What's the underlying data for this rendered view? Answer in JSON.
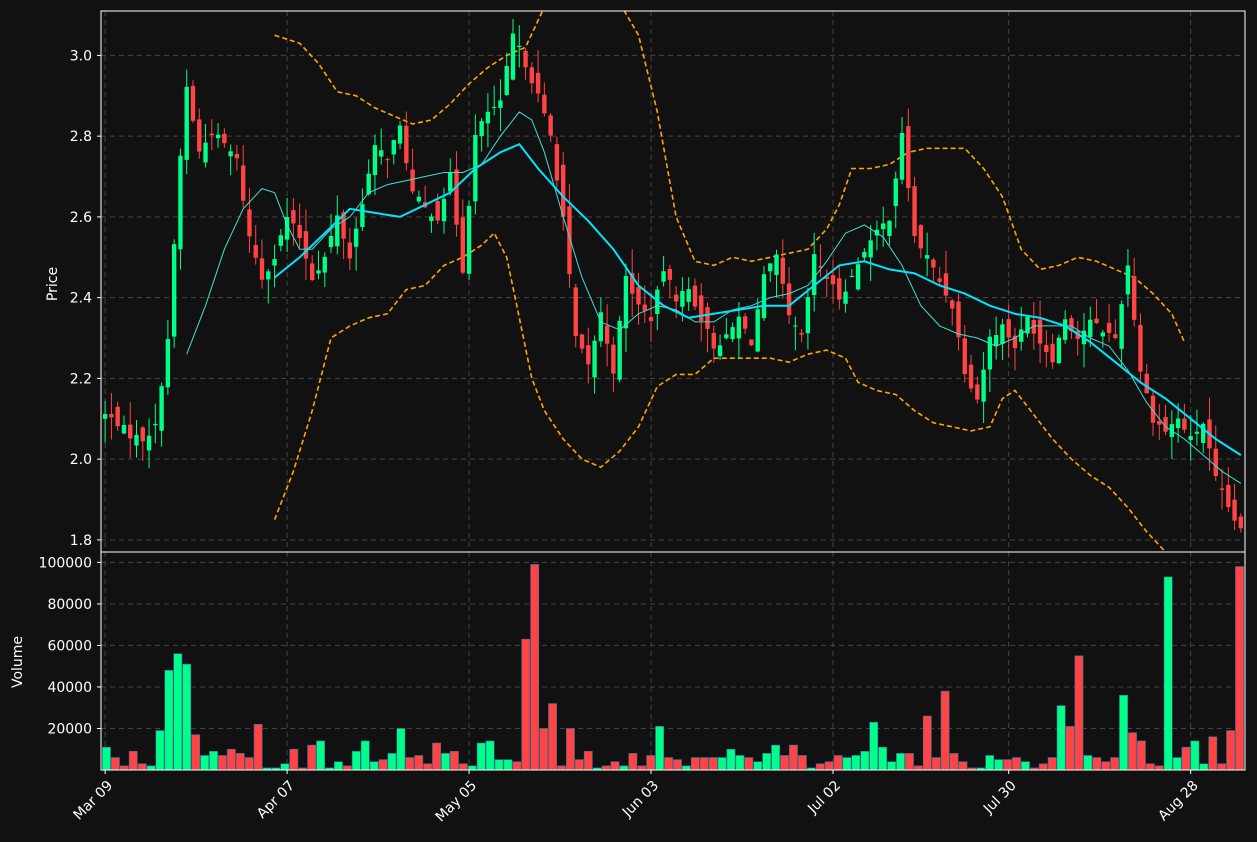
{
  "chart_data": {
    "type": "candlestick",
    "price_panel": {
      "ylabel": "Price",
      "ylim": [
        1.77,
        3.11
      ],
      "yticks": [
        1.8,
        2.0,
        2.2,
        2.4,
        2.6,
        2.8,
        3.0
      ],
      "ytick_labels": [
        "1.8",
        "2.0",
        "2.2",
        "2.4",
        "2.6",
        "2.8",
        "3.0"
      ]
    },
    "volume_panel": {
      "ylabel": "Volume",
      "ylim": [
        0,
        105000
      ],
      "yticks": [
        20000,
        40000,
        60000,
        80000,
        100000
      ],
      "ytick_labels": [
        "20000",
        "40000",
        "60000",
        "80000",
        "100000"
      ]
    },
    "x_tick_labels": [
      "Mar 09",
      "Apr 07",
      "May 05",
      "Jun 03",
      "Jul 02",
      "Jul 30",
      "Aug 28"
    ],
    "x_tick_index": [
      0,
      29,
      58,
      87,
      116,
      144,
      173
    ],
    "n_bars": 182,
    "grid": true,
    "colors": {
      "background": "#111111",
      "up": "#00ff88",
      "down": "#ff4444",
      "ma_fast": "#40e0d0",
      "ma_slow": "#00e5ff",
      "bands": "#ffa500",
      "grid": "#444444",
      "axes": "#ffffff"
    },
    "close_points": [
      [
        0,
        2.11
      ],
      [
        2,
        2.09
      ],
      [
        4,
        2.06
      ],
      [
        6,
        2.05
      ],
      [
        8,
        2.08
      ],
      [
        10,
        2.3
      ],
      [
        12,
        2.75
      ],
      [
        13,
        2.92
      ],
      [
        15,
        2.76
      ],
      [
        17,
        2.81
      ],
      [
        19,
        2.78
      ],
      [
        21,
        2.74
      ],
      [
        23,
        2.55
      ],
      [
        25,
        2.45
      ],
      [
        27,
        2.5
      ],
      [
        29,
        2.6
      ],
      [
        31,
        2.55
      ],
      [
        33,
        2.45
      ],
      [
        35,
        2.5
      ],
      [
        37,
        2.6
      ],
      [
        39,
        2.5
      ],
      [
        41,
        2.64
      ],
      [
        43,
        2.77
      ],
      [
        45,
        2.75
      ],
      [
        47,
        2.82
      ],
      [
        49,
        2.66
      ],
      [
        51,
        2.62
      ],
      [
        53,
        2.6
      ],
      [
        55,
        2.7
      ],
      [
        57,
        2.47
      ],
      [
        59,
        2.8
      ],
      [
        61,
        2.86
      ],
      [
        63,
        2.88
      ],
      [
        65,
        3.05
      ],
      [
        67,
        2.98
      ],
      [
        69,
        2.9
      ],
      [
        71,
        2.8
      ],
      [
        73,
        2.6
      ],
      [
        75,
        2.3
      ],
      [
        77,
        2.23
      ],
      [
        79,
        2.36
      ],
      [
        81,
        2.22
      ],
      [
        83,
        2.45
      ],
      [
        85,
        2.38
      ],
      [
        87,
        2.35
      ],
      [
        89,
        2.47
      ],
      [
        91,
        2.4
      ],
      [
        93,
        2.42
      ],
      [
        95,
        2.35
      ],
      [
        97,
        2.28
      ],
      [
        99,
        2.3
      ],
      [
        101,
        2.35
      ],
      [
        103,
        2.29
      ],
      [
        105,
        2.45
      ],
      [
        107,
        2.5
      ],
      [
        109,
        2.35
      ],
      [
        111,
        2.3
      ],
      [
        113,
        2.5
      ],
      [
        115,
        2.45
      ],
      [
        117,
        2.4
      ],
      [
        119,
        2.45
      ],
      [
        121,
        2.52
      ],
      [
        123,
        2.56
      ],
      [
        125,
        2.6
      ],
      [
        127,
        2.8
      ],
      [
        129,
        2.55
      ],
      [
        131,
        2.5
      ],
      [
        133,
        2.44
      ],
      [
        135,
        2.38
      ],
      [
        137,
        2.22
      ],
      [
        139,
        2.15
      ],
      [
        141,
        2.3
      ],
      [
        143,
        2.33
      ],
      [
        145,
        2.28
      ],
      [
        147,
        2.35
      ],
      [
        149,
        2.29
      ],
      [
        151,
        2.25
      ],
      [
        153,
        2.35
      ],
      [
        155,
        2.3
      ],
      [
        157,
        2.34
      ],
      [
        159,
        2.32
      ],
      [
        161,
        2.3
      ],
      [
        163,
        2.48
      ],
      [
        165,
        2.22
      ],
      [
        167,
        2.1
      ],
      [
        169,
        2.07
      ],
      [
        171,
        2.1
      ],
      [
        173,
        2.05
      ],
      [
        175,
        2.09
      ],
      [
        177,
        1.95
      ],
      [
        179,
        1.88
      ],
      [
        181,
        1.82
      ]
    ],
    "volume_points": [
      [
        0,
        11000
      ],
      [
        1,
        6000
      ],
      [
        2,
        2000
      ],
      [
        3,
        9000
      ],
      [
        4,
        3000
      ],
      [
        5,
        2000
      ],
      [
        6,
        19000
      ],
      [
        7,
        48000
      ],
      [
        8,
        56000
      ],
      [
        9,
        51000
      ],
      [
        10,
        17000
      ],
      [
        11,
        7000
      ],
      [
        12,
        9000
      ],
      [
        13,
        7000
      ],
      [
        14,
        10000
      ],
      [
        15,
        8000
      ],
      [
        16,
        6000
      ],
      [
        17,
        22000
      ],
      [
        18,
        1000
      ],
      [
        19,
        1000
      ],
      [
        20,
        3000
      ],
      [
        21,
        10000
      ],
      [
        22,
        1000
      ],
      [
        23,
        12000
      ],
      [
        24,
        14000
      ],
      [
        25,
        1000
      ],
      [
        26,
        4000
      ],
      [
        27,
        2000
      ],
      [
        28,
        9000
      ],
      [
        29,
        14000
      ],
      [
        30,
        4000
      ],
      [
        31,
        5000
      ],
      [
        32,
        8000
      ],
      [
        33,
        20000
      ],
      [
        34,
        6000
      ],
      [
        35,
        7000
      ],
      [
        36,
        3000
      ],
      [
        37,
        13000
      ],
      [
        38,
        8000
      ],
      [
        39,
        9000
      ],
      [
        40,
        3000
      ],
      [
        41,
        2000
      ],
      [
        42,
        13000
      ],
      [
        43,
        14000
      ],
      [
        44,
        5000
      ],
      [
        45,
        5000
      ],
      [
        46,
        4000
      ],
      [
        47,
        63000
      ],
      [
        48,
        99000
      ],
      [
        49,
        20000
      ],
      [
        50,
        32000
      ],
      [
        51,
        2000
      ],
      [
        52,
        20000
      ],
      [
        53,
        5000
      ],
      [
        54,
        9000
      ],
      [
        55,
        1000
      ],
      [
        56,
        2000
      ],
      [
        57,
        4000
      ],
      [
        58,
        2000
      ],
      [
        59,
        8000
      ],
      [
        60,
        2000
      ],
      [
        61,
        7000
      ],
      [
        62,
        21000
      ],
      [
        63,
        6000
      ],
      [
        64,
        5000
      ],
      [
        65,
        2000
      ],
      [
        66,
        6000
      ],
      [
        67,
        6000
      ],
      [
        68,
        6000
      ],
      [
        69,
        6000
      ],
      [
        70,
        10000
      ],
      [
        71,
        7000
      ],
      [
        72,
        6000
      ],
      [
        73,
        4000
      ],
      [
        74,
        8000
      ],
      [
        75,
        12000
      ],
      [
        76,
        7000
      ],
      [
        77,
        12000
      ],
      [
        78,
        7000
      ],
      [
        79,
        1000
      ],
      [
        80,
        3000
      ],
      [
        81,
        4000
      ],
      [
        82,
        7000
      ],
      [
        83,
        6000
      ],
      [
        84,
        7000
      ],
      [
        85,
        9000
      ],
      [
        86,
        23000
      ],
      [
        87,
        11000
      ],
      [
        88,
        4000
      ],
      [
        89,
        8000
      ],
      [
        90,
        8000
      ],
      [
        91,
        2000
      ],
      [
        92,
        26000
      ],
      [
        93,
        6000
      ],
      [
        94,
        38000
      ],
      [
        95,
        8000
      ],
      [
        96,
        4000
      ],
      [
        97,
        1000
      ],
      [
        98,
        1000
      ],
      [
        99,
        7000
      ],
      [
        100,
        5000
      ],
      [
        101,
        5000
      ],
      [
        102,
        6000
      ],
      [
        103,
        4000
      ],
      [
        104,
        1000
      ],
      [
        105,
        3000
      ],
      [
        106,
        6000
      ],
      [
        107,
        31000
      ],
      [
        108,
        21000
      ],
      [
        109,
        55000
      ],
      [
        110,
        7000
      ],
      [
        111,
        6000
      ],
      [
        112,
        4000
      ],
      [
        113,
        6000
      ],
      [
        114,
        36000
      ],
      [
        115,
        18000
      ],
      [
        116,
        14000
      ],
      [
        117,
        3000
      ],
      [
        118,
        2000
      ],
      [
        119,
        93000
      ],
      [
        120,
        6000
      ],
      [
        121,
        11000
      ],
      [
        122,
        14000
      ],
      [
        123,
        3000
      ],
      [
        124,
        16000
      ],
      [
        125,
        3000
      ],
      [
        126,
        19000
      ],
      [
        127,
        98000
      ]
    ],
    "ma_fast_points": [
      [
        13,
        2.26
      ],
      [
        16,
        2.38
      ],
      [
        19,
        2.52
      ],
      [
        22,
        2.62
      ],
      [
        25,
        2.67
      ],
      [
        27,
        2.66
      ],
      [
        29,
        2.58
      ],
      [
        31,
        2.52
      ],
      [
        33,
        2.52
      ],
      [
        36,
        2.57
      ],
      [
        39,
        2.6
      ],
      [
        42,
        2.66
      ],
      [
        45,
        2.68
      ],
      [
        48,
        2.69
      ],
      [
        51,
        2.7
      ],
      [
        54,
        2.71
      ],
      [
        57,
        2.71
      ],
      [
        60,
        2.73
      ],
      [
        63,
        2.8
      ],
      [
        66,
        2.86
      ],
      [
        68,
        2.84
      ],
      [
        70,
        2.76
      ],
      [
        73,
        2.6
      ],
      [
        76,
        2.45
      ],
      [
        79,
        2.34
      ],
      [
        82,
        2.32
      ],
      [
        85,
        2.36
      ],
      [
        88,
        2.38
      ],
      [
        91,
        2.37
      ],
      [
        94,
        2.34
      ],
      [
        97,
        2.34
      ],
      [
        100,
        2.37
      ],
      [
        103,
        2.38
      ],
      [
        106,
        2.4
      ],
      [
        109,
        2.41
      ],
      [
        112,
        2.43
      ],
      [
        115,
        2.49
      ],
      [
        118,
        2.56
      ],
      [
        121,
        2.58
      ],
      [
        124,
        2.55
      ],
      [
        127,
        2.48
      ],
      [
        130,
        2.38
      ],
      [
        133,
        2.33
      ],
      [
        136,
        2.31
      ],
      [
        139,
        2.3
      ],
      [
        142,
        2.28
      ],
      [
        145,
        2.3
      ],
      [
        148,
        2.33
      ],
      [
        151,
        2.33
      ],
      [
        154,
        2.33
      ],
      [
        157,
        2.3
      ],
      [
        160,
        2.28
      ],
      [
        163,
        2.22
      ],
      [
        166,
        2.14
      ],
      [
        169,
        2.08
      ],
      [
        172,
        2.05
      ],
      [
        175,
        2.01
      ],
      [
        178,
        1.97
      ],
      [
        181,
        1.94
      ]
    ],
    "ma_slow_points": [
      [
        27,
        2.45
      ],
      [
        31,
        2.5
      ],
      [
        35,
        2.56
      ],
      [
        39,
        2.62
      ],
      [
        43,
        2.61
      ],
      [
        47,
        2.6
      ],
      [
        51,
        2.63
      ],
      [
        55,
        2.66
      ],
      [
        59,
        2.72
      ],
      [
        63,
        2.76
      ],
      [
        66,
        2.78
      ],
      [
        69,
        2.72
      ],
      [
        73,
        2.65
      ],
      [
        77,
        2.59
      ],
      [
        81,
        2.52
      ],
      [
        85,
        2.43
      ],
      [
        89,
        2.38
      ],
      [
        93,
        2.35
      ],
      [
        97,
        2.36
      ],
      [
        101,
        2.37
      ],
      [
        105,
        2.38
      ],
      [
        109,
        2.38
      ],
      [
        113,
        2.43
      ],
      [
        117,
        2.48
      ],
      [
        121,
        2.49
      ],
      [
        125,
        2.47
      ],
      [
        129,
        2.46
      ],
      [
        133,
        2.43
      ],
      [
        137,
        2.41
      ],
      [
        141,
        2.38
      ],
      [
        145,
        2.36
      ],
      [
        149,
        2.35
      ],
      [
        153,
        2.33
      ],
      [
        157,
        2.29
      ],
      [
        161,
        2.24
      ],
      [
        165,
        2.19
      ],
      [
        169,
        2.15
      ],
      [
        173,
        2.1
      ],
      [
        177,
        2.05
      ],
      [
        181,
        2.01
      ]
    ],
    "upper_band_points": [
      [
        27,
        3.05
      ],
      [
        31,
        3.03
      ],
      [
        34,
        2.98
      ],
      [
        37,
        2.91
      ],
      [
        40,
        2.9
      ],
      [
        43,
        2.87
      ],
      [
        46,
        2.85
      ],
      [
        49,
        2.83
      ],
      [
        52,
        2.84
      ],
      [
        55,
        2.88
      ],
      [
        58,
        2.93
      ],
      [
        61,
        2.97
      ],
      [
        64,
        3.0
      ],
      [
        67,
        3.02
      ],
      [
        70,
        3.12
      ],
      [
        73,
        3.19
      ],
      [
        76,
        3.2
      ],
      [
        79,
        3.18
      ],
      [
        82,
        3.13
      ],
      [
        85,
        3.05
      ],
      [
        88,
        2.86
      ],
      [
        91,
        2.6
      ],
      [
        94,
        2.49
      ],
      [
        97,
        2.48
      ],
      [
        100,
        2.5
      ],
      [
        103,
        2.49
      ],
      [
        106,
        2.5
      ],
      [
        109,
        2.51
      ],
      [
        112,
        2.52
      ],
      [
        115,
        2.57
      ],
      [
        117,
        2.63
      ],
      [
        119,
        2.72
      ],
      [
        122,
        2.72
      ],
      [
        125,
        2.73
      ],
      [
        128,
        2.76
      ],
      [
        131,
        2.77
      ],
      [
        134,
        2.77
      ],
      [
        137,
        2.77
      ],
      [
        140,
        2.72
      ],
      [
        143,
        2.65
      ],
      [
        146,
        2.52
      ],
      [
        149,
        2.47
      ],
      [
        152,
        2.48
      ],
      [
        155,
        2.5
      ],
      [
        158,
        2.49
      ],
      [
        161,
        2.47
      ],
      [
        164,
        2.45
      ],
      [
        167,
        2.41
      ],
      [
        170,
        2.36
      ],
      [
        172,
        2.29
      ]
    ],
    "lower_band_points": [
      [
        27,
        1.85
      ],
      [
        30,
        1.97
      ],
      [
        33,
        2.12
      ],
      [
        36,
        2.3
      ],
      [
        39,
        2.33
      ],
      [
        42,
        2.35
      ],
      [
        45,
        2.36
      ],
      [
        48,
        2.42
      ],
      [
        51,
        2.43
      ],
      [
        54,
        2.48
      ],
      [
        57,
        2.5
      ],
      [
        60,
        2.53
      ],
      [
        62,
        2.56
      ],
      [
        64,
        2.5
      ],
      [
        66,
        2.35
      ],
      [
        68,
        2.2
      ],
      [
        70,
        2.12
      ],
      [
        73,
        2.05
      ],
      [
        76,
        2.0
      ],
      [
        79,
        1.98
      ],
      [
        82,
        2.02
      ],
      [
        85,
        2.08
      ],
      [
        88,
        2.18
      ],
      [
        91,
        2.21
      ],
      [
        94,
        2.21
      ],
      [
        97,
        2.25
      ],
      [
        100,
        2.25
      ],
      [
        103,
        2.25
      ],
      [
        106,
        2.25
      ],
      [
        109,
        2.24
      ],
      [
        112,
        2.26
      ],
      [
        115,
        2.27
      ],
      [
        118,
        2.25
      ],
      [
        120,
        2.19
      ],
      [
        123,
        2.17
      ],
      [
        126,
        2.16
      ],
      [
        129,
        2.12
      ],
      [
        132,
        2.09
      ],
      [
        135,
        2.08
      ],
      [
        138,
        2.07
      ],
      [
        141,
        2.08
      ],
      [
        143,
        2.15
      ],
      [
        145,
        2.17
      ],
      [
        148,
        2.11
      ],
      [
        151,
        2.05
      ],
      [
        154,
        2.0
      ],
      [
        157,
        1.96
      ],
      [
        160,
        1.93
      ],
      [
        163,
        1.88
      ],
      [
        166,
        1.82
      ],
      [
        169,
        1.77
      ]
    ]
  }
}
